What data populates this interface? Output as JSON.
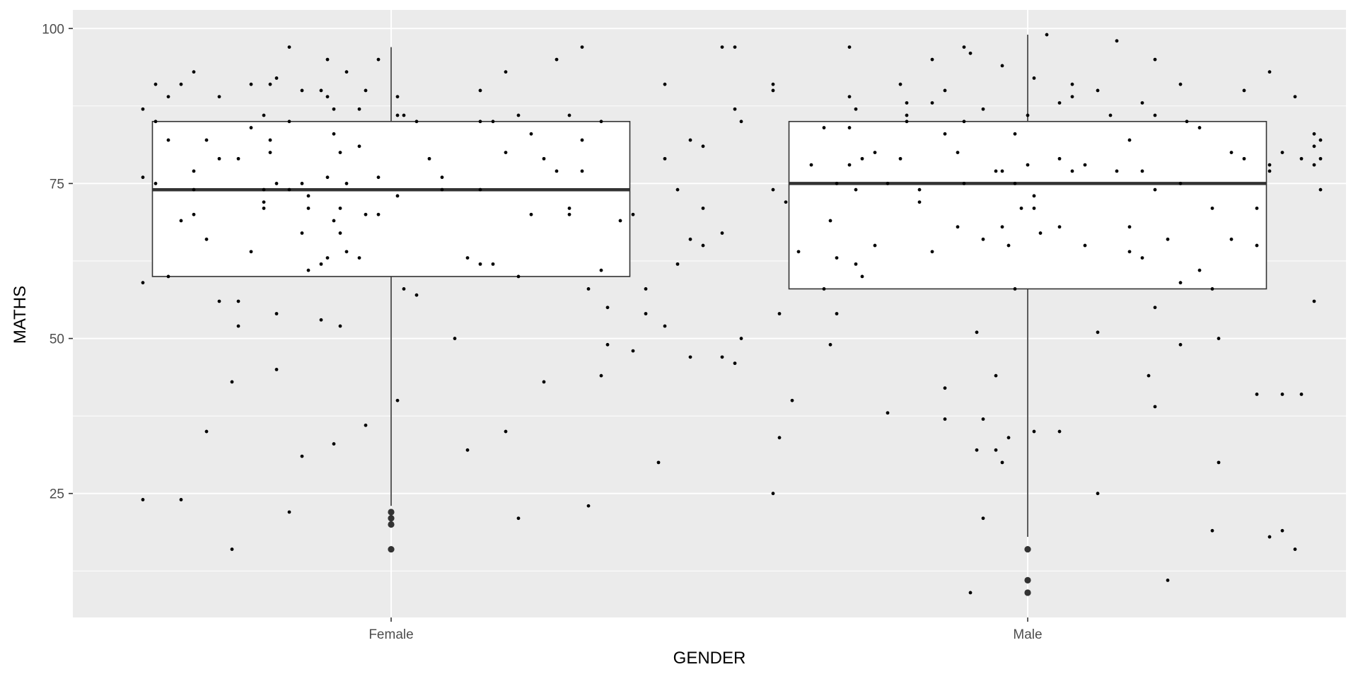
{
  "chart_data": {
    "type": "box",
    "title": "",
    "xlabel": "GENDER",
    "ylabel": "MATHS",
    "categories": [
      "Female",
      "Male"
    ],
    "ylim": [
      5,
      103
    ],
    "yticks": [
      25,
      50,
      75,
      100
    ],
    "grid": true,
    "colors": {
      "panel": "#ebebeb",
      "grid": "#ffffff",
      "box_fill": "#ffffff",
      "box_stroke": "#333333",
      "median": "#333333",
      "points": "#000000",
      "outliers": "#333333"
    },
    "boxes": [
      {
        "category": "Female",
        "q1": 60,
        "median": 74,
        "q3": 85,
        "whisker_low": 23,
        "whisker_high": 97,
        "outliers": [
          22,
          21,
          20,
          16
        ]
      },
      {
        "category": "Male",
        "q1": 58,
        "median": 75,
        "q3": 85,
        "whisker_low": 18,
        "whisker_high": 99,
        "outliers": [
          16,
          11,
          9
        ]
      }
    ],
    "points": [
      {
        "category": "Female",
        "jitter": -0.39,
        "values": [
          87,
          76,
          59,
          24
        ]
      },
      {
        "category": "Female",
        "jitter": -0.37,
        "values": [
          91,
          85,
          75
        ]
      },
      {
        "category": "Female",
        "jitter": -0.35,
        "values": [
          89,
          82,
          60
        ]
      },
      {
        "category": "Female",
        "jitter": -0.33,
        "values": [
          91,
          69,
          24
        ]
      },
      {
        "category": "Female",
        "jitter": -0.31,
        "values": [
          93,
          77,
          70,
          74
        ]
      },
      {
        "category": "Female",
        "jitter": -0.29,
        "values": [
          82,
          66,
          35
        ]
      },
      {
        "category": "Female",
        "jitter": -0.27,
        "values": [
          89,
          79,
          56
        ]
      },
      {
        "category": "Female",
        "jitter": -0.25,
        "values": [
          43,
          16
        ]
      },
      {
        "category": "Female",
        "jitter": -0.24,
        "values": [
          79,
          56,
          52
        ]
      },
      {
        "category": "Female",
        "jitter": -0.22,
        "values": [
          91,
          84,
          64
        ]
      },
      {
        "category": "Female",
        "jitter": -0.2,
        "values": [
          86,
          74,
          71,
          72
        ]
      },
      {
        "category": "Female",
        "jitter": -0.19,
        "values": [
          91,
          82,
          80
        ]
      },
      {
        "category": "Female",
        "jitter": -0.18,
        "values": [
          92,
          75,
          54,
          45
        ]
      },
      {
        "category": "Female",
        "jitter": -0.16,
        "values": [
          97,
          85,
          74,
          22
        ]
      },
      {
        "category": "Female",
        "jitter": -0.14,
        "values": [
          90,
          75,
          67,
          31
        ]
      },
      {
        "category": "Female",
        "jitter": -0.13,
        "values": [
          71,
          61,
          73
        ]
      },
      {
        "category": "Female",
        "jitter": -0.11,
        "values": [
          90,
          62,
          53
        ]
      },
      {
        "category": "Female",
        "jitter": -0.1,
        "values": [
          95,
          89,
          76,
          63
        ]
      },
      {
        "category": "Female",
        "jitter": -0.09,
        "values": [
          87,
          83,
          69,
          33
        ]
      },
      {
        "category": "Female",
        "jitter": -0.08,
        "values": [
          80,
          71,
          67,
          52
        ]
      },
      {
        "category": "Female",
        "jitter": -0.07,
        "values": [
          93,
          75,
          64
        ]
      },
      {
        "category": "Female",
        "jitter": -0.05,
        "values": [
          87,
          81,
          63
        ]
      },
      {
        "category": "Female",
        "jitter": -0.04,
        "values": [
          90,
          70,
          36
        ]
      },
      {
        "category": "Female",
        "jitter": -0.02,
        "values": [
          95,
          76,
          70
        ]
      },
      {
        "category": "Female",
        "jitter": 0.01,
        "values": [
          89,
          86,
          73,
          40
        ]
      },
      {
        "category": "Female",
        "jitter": 0.02,
        "values": [
          86,
          58
        ]
      },
      {
        "category": "Female",
        "jitter": 0.04,
        "values": [
          85,
          57
        ]
      },
      {
        "category": "Female",
        "jitter": 0.06,
        "values": [
          79
        ]
      },
      {
        "category": "Female",
        "jitter": 0.08,
        "values": [
          74,
          76
        ]
      },
      {
        "category": "Female",
        "jitter": 0.1,
        "values": [
          50
        ]
      },
      {
        "category": "Female",
        "jitter": 0.12,
        "values": [
          63,
          32
        ]
      },
      {
        "category": "Female",
        "jitter": 0.14,
        "values": [
          90,
          85,
          74,
          62
        ]
      },
      {
        "category": "Female",
        "jitter": 0.16,
        "values": [
          85,
          62
        ]
      },
      {
        "category": "Female",
        "jitter": 0.18,
        "values": [
          93,
          80,
          35
        ]
      },
      {
        "category": "Female",
        "jitter": 0.2,
        "values": [
          86,
          60,
          21
        ]
      },
      {
        "category": "Female",
        "jitter": 0.22,
        "values": [
          83,
          70
        ]
      },
      {
        "category": "Female",
        "jitter": 0.24,
        "values": [
          79,
          43
        ]
      },
      {
        "category": "Female",
        "jitter": 0.26,
        "values": [
          95,
          77
        ]
      },
      {
        "category": "Female",
        "jitter": 0.28,
        "values": [
          86,
          71,
          70
        ]
      },
      {
        "category": "Female",
        "jitter": 0.3,
        "values": [
          97,
          82,
          77
        ]
      },
      {
        "category": "Female",
        "jitter": 0.31,
        "values": [
          58,
          23
        ]
      },
      {
        "category": "Female",
        "jitter": 0.33,
        "values": [
          85,
          61,
          44
        ]
      },
      {
        "category": "Female",
        "jitter": 0.34,
        "values": [
          55,
          49
        ]
      },
      {
        "category": "Female",
        "jitter": 0.36,
        "values": [
          69
        ]
      },
      {
        "category": "Female",
        "jitter": 0.38,
        "values": [
          70,
          48
        ]
      },
      {
        "category": "Female",
        "jitter": 0.4,
        "values": [
          54,
          58
        ]
      },
      {
        "category": "Female",
        "jitter": 0.42,
        "values": [
          30
        ]
      },
      {
        "category": "Female",
        "jitter": 0.43,
        "values": [
          91,
          79,
          52
        ]
      },
      {
        "category": "Female",
        "jitter": 0.45,
        "values": [
          74,
          62
        ]
      },
      {
        "category": "Female",
        "jitter": 0.47,
        "values": [
          82,
          66,
          47
        ]
      },
      {
        "category": "Female",
        "jitter": 0.49,
        "values": [
          81,
          71,
          65
        ]
      },
      {
        "category": "Female",
        "jitter": 0.52,
        "values": [
          97,
          67,
          47
        ]
      },
      {
        "category": "Female",
        "jitter": 0.54,
        "values": [
          97,
          87,
          46
        ]
      },
      {
        "category": "Female",
        "jitter": 0.55,
        "values": [
          85,
          50
        ]
      },
      {
        "category": "Male",
        "jitter": -0.4,
        "values": [
          91,
          90,
          74,
          25
        ]
      },
      {
        "category": "Male",
        "jitter": -0.39,
        "values": [
          54,
          34
        ]
      },
      {
        "category": "Male",
        "jitter": -0.38,
        "values": [
          72
        ]
      },
      {
        "category": "Male",
        "jitter": -0.37,
        "values": [
          40
        ]
      },
      {
        "category": "Male",
        "jitter": -0.36,
        "values": [
          64
        ]
      },
      {
        "category": "Male",
        "jitter": -0.34,
        "values": [
          78
        ]
      },
      {
        "category": "Male",
        "jitter": -0.32,
        "values": [
          84,
          58
        ]
      },
      {
        "category": "Male",
        "jitter": -0.31,
        "values": [
          69,
          49
        ]
      },
      {
        "category": "Male",
        "jitter": -0.3,
        "values": [
          75,
          63,
          54
        ]
      },
      {
        "category": "Male",
        "jitter": -0.28,
        "values": [
          97,
          89,
          84,
          78
        ]
      },
      {
        "category": "Male",
        "jitter": -0.27,
        "values": [
          87,
          74,
          62
        ]
      },
      {
        "category": "Male",
        "jitter": -0.26,
        "values": [
          79,
          60
        ]
      },
      {
        "category": "Male",
        "jitter": -0.24,
        "values": [
          80,
          65
        ]
      },
      {
        "category": "Male",
        "jitter": -0.22,
        "values": [
          75,
          38
        ]
      },
      {
        "category": "Male",
        "jitter": -0.2,
        "values": [
          91,
          79
        ]
      },
      {
        "category": "Male",
        "jitter": -0.19,
        "values": [
          88,
          86,
          85
        ]
      },
      {
        "category": "Male",
        "jitter": -0.17,
        "values": [
          74,
          72
        ]
      },
      {
        "category": "Male",
        "jitter": -0.15,
        "values": [
          95,
          88,
          64
        ]
      },
      {
        "category": "Male",
        "jitter": -0.13,
        "values": [
          90,
          83,
          42,
          37
        ]
      },
      {
        "category": "Male",
        "jitter": -0.11,
        "values": [
          80,
          68
        ]
      },
      {
        "category": "Male",
        "jitter": -0.1,
        "values": [
          97,
          85,
          75
        ]
      },
      {
        "category": "Male",
        "jitter": -0.09,
        "values": [
          96,
          9
        ]
      },
      {
        "category": "Male",
        "jitter": -0.08,
        "values": [
          51,
          32
        ]
      },
      {
        "category": "Male",
        "jitter": -0.07,
        "values": [
          87,
          66,
          37,
          21
        ]
      },
      {
        "category": "Male",
        "jitter": -0.05,
        "values": [
          77,
          44,
          32
        ]
      },
      {
        "category": "Male",
        "jitter": -0.04,
        "values": [
          94,
          77,
          68,
          30
        ]
      },
      {
        "category": "Male",
        "jitter": -0.03,
        "values": [
          65,
          34
        ]
      },
      {
        "category": "Male",
        "jitter": -0.02,
        "values": [
          83,
          75,
          58
        ]
      },
      {
        "category": "Male",
        "jitter": -0.01,
        "values": [
          71
        ]
      },
      {
        "category": "Male",
        "jitter": 0.0,
        "values": [
          86,
          78
        ]
      },
      {
        "category": "Male",
        "jitter": 0.01,
        "values": [
          92,
          73,
          71,
          35
        ]
      },
      {
        "category": "Male",
        "jitter": 0.02,
        "values": [
          67
        ]
      },
      {
        "category": "Male",
        "jitter": 0.03,
        "values": [
          99
        ]
      },
      {
        "category": "Male",
        "jitter": 0.05,
        "values": [
          88,
          79,
          68,
          35
        ]
      },
      {
        "category": "Male",
        "jitter": 0.07,
        "values": [
          91,
          89,
          77
        ]
      },
      {
        "category": "Male",
        "jitter": 0.09,
        "values": [
          78,
          65
        ]
      },
      {
        "category": "Male",
        "jitter": 0.11,
        "values": [
          90,
          51,
          25
        ]
      },
      {
        "category": "Male",
        "jitter": 0.13,
        "values": [
          86
        ]
      },
      {
        "category": "Male",
        "jitter": 0.14,
        "values": [
          98,
          77
        ]
      },
      {
        "category": "Male",
        "jitter": 0.16,
        "values": [
          82,
          68,
          64
        ]
      },
      {
        "category": "Male",
        "jitter": 0.18,
        "values": [
          88,
          77,
          63
        ]
      },
      {
        "category": "Male",
        "jitter": 0.19,
        "values": [
          44
        ]
      },
      {
        "category": "Male",
        "jitter": 0.2,
        "values": [
          95,
          86,
          74,
          55,
          39
        ]
      },
      {
        "category": "Male",
        "jitter": 0.22,
        "values": [
          66,
          11
        ]
      },
      {
        "category": "Male",
        "jitter": 0.24,
        "values": [
          91,
          75,
          59,
          49
        ]
      },
      {
        "category": "Male",
        "jitter": 0.25,
        "values": [
          85
        ]
      },
      {
        "category": "Male",
        "jitter": 0.27,
        "values": [
          84,
          61
        ]
      },
      {
        "category": "Male",
        "jitter": 0.29,
        "values": [
          71,
          58,
          19
        ]
      },
      {
        "category": "Male",
        "jitter": 0.3,
        "values": [
          50,
          30
        ]
      },
      {
        "category": "Male",
        "jitter": 0.32,
        "values": [
          80,
          66
        ]
      },
      {
        "category": "Male",
        "jitter": 0.34,
        "values": [
          90,
          79
        ]
      },
      {
        "category": "Male",
        "jitter": 0.36,
        "values": [
          71,
          65,
          41
        ]
      },
      {
        "category": "Male",
        "jitter": 0.38,
        "values": [
          93,
          78,
          77,
          18
        ]
      },
      {
        "category": "Male",
        "jitter": 0.4,
        "values": [
          80,
          41,
          19
        ]
      },
      {
        "category": "Male",
        "jitter": 0.42,
        "values": [
          89,
          16
        ]
      },
      {
        "category": "Male",
        "jitter": 0.43,
        "values": [
          79,
          41
        ]
      },
      {
        "category": "Male",
        "jitter": 0.45,
        "values": [
          83,
          81,
          78,
          56
        ]
      },
      {
        "category": "Male",
        "jitter": 0.46,
        "values": [
          82,
          79,
          74
        ]
      }
    ]
  }
}
